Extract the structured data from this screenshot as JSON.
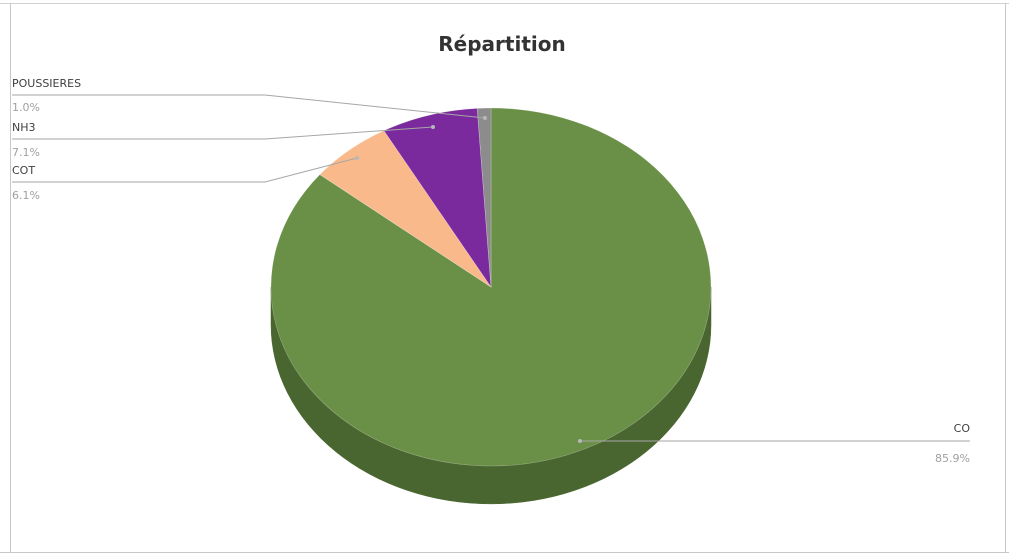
{
  "chart_data": {
    "type": "pie",
    "title": "Répartition",
    "start_angle_deg": 0,
    "direction": "clockwise",
    "style": "3d",
    "categories": [
      "CO",
      "COT",
      "NH3",
      "POUSSIERES"
    ],
    "values": [
      85.9,
      6.1,
      7.1,
      1.0
    ],
    "percent_labels": [
      "85.9%",
      "6.1%",
      "7.1%",
      "1.0%"
    ],
    "colors": [
      "#6a8f46",
      "#f9b98a",
      "#7a2a9c",
      "#8c8c8c"
    ],
    "side_colors": [
      "#4a6630",
      "#c98f62",
      "#561c70",
      "#626262"
    ],
    "legend": "none"
  }
}
